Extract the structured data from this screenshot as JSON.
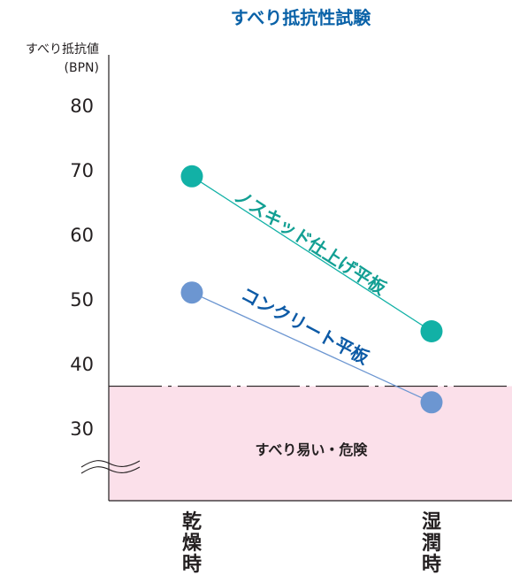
{
  "colors": {
    "title": "#0a62a8",
    "series_nonskid": "#12b1a6",
    "series_concrete": "#6c96d1",
    "label_nonskid": "#129f93",
    "label_concrete": "#0c5aa6",
    "danger_fill": "#fbe0ea",
    "axis": "#231f20"
  },
  "chart_data": {
    "type": "line",
    "title": "すべり抵抗性試験",
    "ylabel": "すべり抵抗値",
    "yunit": "(BPN)",
    "categories": [
      "乾燥時",
      "湿潤時"
    ],
    "yticks": [
      30,
      40,
      50,
      60,
      70,
      80
    ],
    "ylim": [
      20,
      85
    ],
    "axis_break": true,
    "series": [
      {
        "name": "ノスキッド仕上げ平板",
        "values": [
          69,
          45
        ]
      },
      {
        "name": "コンクリート平板",
        "values": [
          51,
          34
        ]
      }
    ],
    "threshold": {
      "value": 36.5,
      "style": "dash-dot"
    },
    "danger_zone_label": "すべり易い・危険"
  }
}
